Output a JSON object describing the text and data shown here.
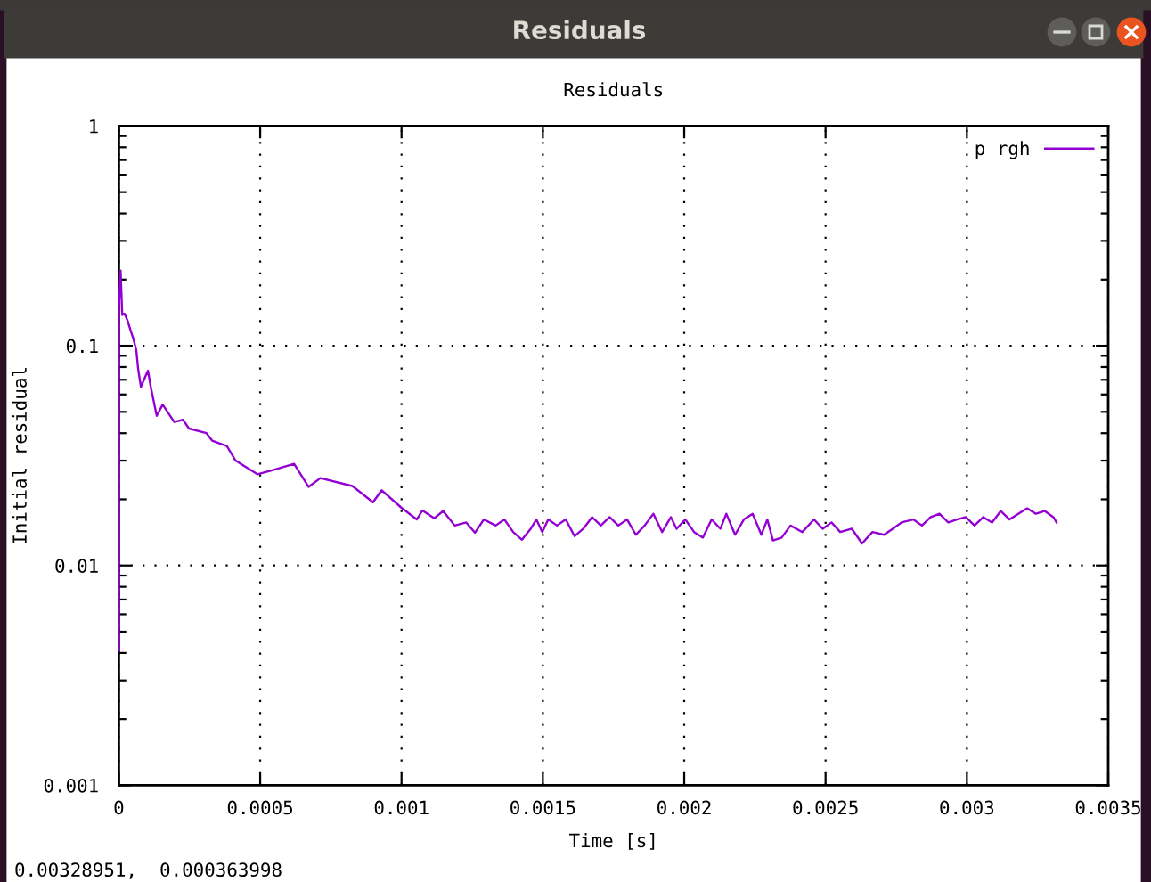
{
  "chart_data": {
    "type": "line",
    "title": "Residuals",
    "xlabel": "Time [s]",
    "ylabel": "Initial residual",
    "annotations": [
      "Residuals",
      "0.00328951,  0.000363998"
    ],
    "x": [
      0,
      0,
      6.2e-06,
      1.2e-05,
      2e-05,
      3.1e-05,
      4.1e-05,
      5.1e-05,
      6.2e-05,
      6.8e-05,
      7.8e-05,
      9.3e-05,
      0.000103,
      0.000113,
      0.000134,
      0.000155,
      0.000196,
      0.000227,
      0.000248,
      0.00031,
      0.00033,
      0.000382,
      0.000413,
      0.00049,
      0.000537,
      0.00062,
      0.000671,
      0.000713,
      0.000826,
      0.000899,
      0.00093,
      0.001,
      0.001054,
      0.001074,
      0.001116,
      0.001147,
      0.001188,
      0.001229,
      0.00126,
      0.001291,
      0.001333,
      0.001364,
      0.001395,
      0.001426,
      0.001457,
      0.001477,
      0.001498,
      0.001519,
      0.00155,
      0.001581,
      0.001612,
      0.001643,
      0.001674,
      0.001705,
      0.001736,
      0.001767,
      0.001798,
      0.001829,
      0.00186,
      0.001891,
      0.001922,
      0.001953,
      0.001973,
      0.002004,
      0.002035,
      0.002066,
      0.002097,
      0.002128,
      0.002149,
      0.00218,
      0.002211,
      0.002242,
      0.002273,
      0.002294,
      0.002314,
      0.002345,
      0.002376,
      0.002418,
      0.002459,
      0.00249,
      0.002521,
      0.002552,
      0.002593,
      0.002629,
      0.002666,
      0.002707,
      0.002738,
      0.002769,
      0.00281,
      0.002841,
      0.002872,
      0.002903,
      0.002934,
      0.002965,
      0.002996,
      0.003027,
      0.003058,
      0.003089,
      0.00312,
      0.003151,
      0.003182,
      0.003213,
      0.003244,
      0.003275,
      0.003306,
      0.003317
    ],
    "series": [
      {
        "name": "p_rgh",
        "color": "#9400d3",
        "values": [
          0.0041,
          0.147,
          0.22,
          0.138,
          0.14,
          0.13,
          0.118,
          0.108,
          0.095,
          0.079,
          0.065,
          0.072,
          0.077,
          0.065,
          0.048,
          0.054,
          0.045,
          0.046,
          0.042,
          0.04,
          0.037,
          0.035,
          0.03,
          0.026,
          0.027,
          0.029,
          0.0228,
          0.025,
          0.023,
          0.0194,
          0.022,
          0.0183,
          0.0162,
          0.0178,
          0.0164,
          0.0177,
          0.0152,
          0.0157,
          0.0141,
          0.0162,
          0.0152,
          0.0162,
          0.0142,
          0.0131,
          0.0147,
          0.0162,
          0.0142,
          0.0162,
          0.0152,
          0.0162,
          0.0136,
          0.0147,
          0.0166,
          0.0152,
          0.0166,
          0.0152,
          0.0162,
          0.0138,
          0.0152,
          0.0172,
          0.0142,
          0.0166,
          0.0147,
          0.0162,
          0.0142,
          0.0134,
          0.0162,
          0.0147,
          0.0172,
          0.0138,
          0.0162,
          0.0172,
          0.0138,
          0.0162,
          0.013,
          0.0134,
          0.0152,
          0.0142,
          0.0162,
          0.0147,
          0.0157,
          0.0142,
          0.0147,
          0.0126,
          0.0142,
          0.0138,
          0.0147,
          0.0157,
          0.0162,
          0.0152,
          0.0166,
          0.0172,
          0.0157,
          0.0162,
          0.0166,
          0.0152,
          0.0166,
          0.0157,
          0.0177,
          0.0162,
          0.0172,
          0.0182,
          0.0172,
          0.0177,
          0.0166,
          0.0157
        ]
      }
    ],
    "xlim": [
      0,
      0.0035
    ],
    "xticks": [
      0,
      0.0005,
      0.001,
      0.0015,
      0.002,
      0.0025,
      0.003,
      0.0035
    ],
    "ylim": [
      0.001,
      1
    ],
    "yticks": [
      0.001,
      0.01,
      0.1,
      1
    ],
    "log": "y",
    "grid": true,
    "legend": "top right",
    "line_style": "solid"
  }
}
